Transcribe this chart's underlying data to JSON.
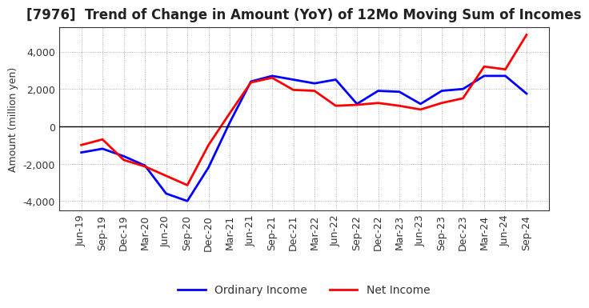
{
  "title": "[7976]  Trend of Change in Amount (YoY) of 12Mo Moving Sum of Incomes",
  "ylabel": "Amount (million yen)",
  "x_labels": [
    "Jun-19",
    "Sep-19",
    "Dec-19",
    "Mar-20",
    "Jun-20",
    "Sep-20",
    "Dec-20",
    "Mar-21",
    "Jun-21",
    "Sep-21",
    "Dec-21",
    "Mar-22",
    "Jun-22",
    "Sep-22",
    "Dec-22",
    "Mar-23",
    "Jun-23",
    "Sep-23",
    "Dec-23",
    "Mar-24",
    "Jun-24",
    "Sep-24"
  ],
  "ordinary_income": [
    -1400,
    -1200,
    -1600,
    -2100,
    -3600,
    -4000,
    -2200,
    200,
    2400,
    2700,
    2500,
    2300,
    2500,
    1200,
    1900,
    1850,
    1200,
    1900,
    2000,
    2700,
    2700,
    1750
  ],
  "net_income": [
    -1000,
    -700,
    -1800,
    -2150,
    -2650,
    -3150,
    -1000,
    700,
    2350,
    2600,
    1950,
    1900,
    1100,
    1150,
    1250,
    1100,
    900,
    1250,
    1500,
    3200,
    3050,
    4900
  ],
  "ordinary_color": "#0000FF",
  "net_color": "#FF0000",
  "line_width": 2.0,
  "ylim": [
    -4500,
    5300
  ],
  "yticks": [
    -4000,
    -2000,
    0,
    2000,
    4000
  ],
  "background_color": "#FFFFFF",
  "grid_color": "#999999",
  "title_fontsize": 12,
  "axis_fontsize": 9,
  "tick_fontsize": 9,
  "legend_fontsize": 10
}
